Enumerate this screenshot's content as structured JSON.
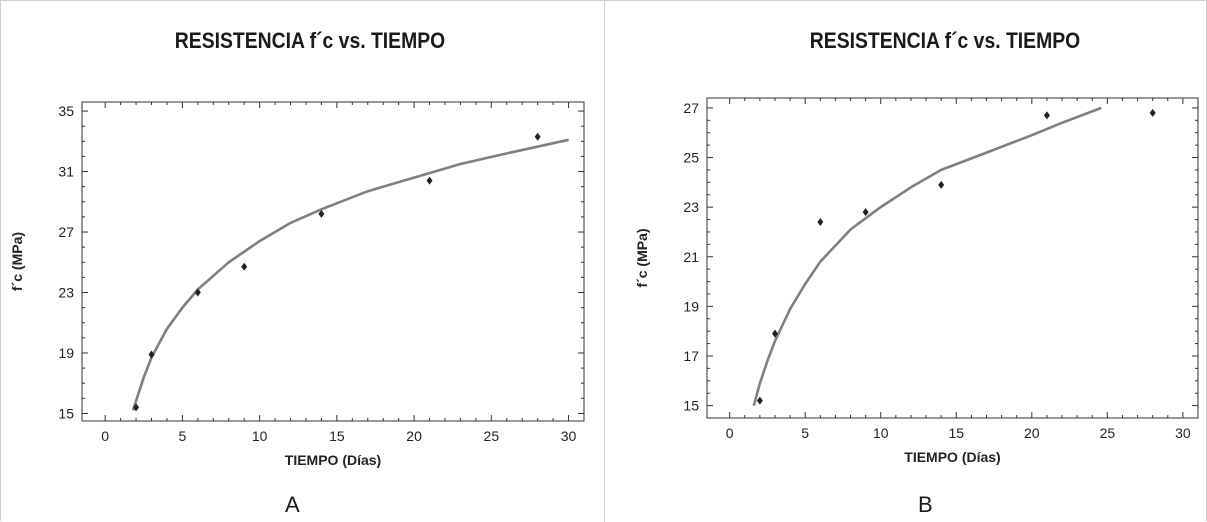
{
  "chart_data": [
    {
      "type": "scatter",
      "panel_label": "A",
      "title": "RESISTENCIA f´c vs. TIEMPO",
      "xlabel": "TIEMPO (Días)",
      "ylabel": "f´c (MPa)",
      "xlim": [
        -1.5,
        31
      ],
      "ylim": [
        14.5,
        35.6
      ],
      "xticks": [
        0,
        5,
        10,
        15,
        20,
        25,
        30
      ],
      "yticks": [
        15,
        19,
        23,
        27,
        31,
        35
      ],
      "grid": false,
      "series": [
        {
          "kind": "points",
          "marker": "diamond",
          "x": [
            2,
            3,
            6,
            9,
            14,
            21,
            28
          ],
          "y": [
            15.4,
            18.9,
            23.0,
            24.7,
            28.2,
            30.4,
            33.3
          ]
        },
        {
          "kind": "fit",
          "curve": "logarithmic",
          "x_range": [
            1.8,
            30
          ],
          "x": [
            1.8,
            2.5,
            3,
            4,
            5,
            6,
            8,
            10,
            12,
            14,
            17,
            20,
            23,
            26,
            30
          ],
          "y": [
            15.2,
            17.4,
            18.7,
            20.6,
            22.0,
            23.2,
            25.0,
            26.4,
            27.6,
            28.5,
            29.7,
            30.6,
            31.5,
            32.2,
            33.1
          ]
        }
      ]
    },
    {
      "type": "scatter",
      "panel_label": "B",
      "title": "RESISTENCIA f´c vs. TIEMPO",
      "xlabel": "TIEMPO (Días)",
      "ylabel": "f´c (MPa)",
      "xlim": [
        -1.5,
        31
      ],
      "ylim": [
        14.5,
        27.4
      ],
      "xticks": [
        0,
        5,
        10,
        15,
        20,
        25,
        30
      ],
      "yticks": [
        15,
        17,
        19,
        21,
        23,
        25,
        27
      ],
      "grid": false,
      "series": [
        {
          "kind": "points",
          "marker": "diamond",
          "x": [
            2,
            3,
            6,
            9,
            14,
            21,
            28
          ],
          "y": [
            15.2,
            17.9,
            22.4,
            22.8,
            23.9,
            26.7,
            26.8
          ]
        },
        {
          "kind": "fit",
          "curve": "logarithmic",
          "x_range": [
            1.6,
            24.6
          ],
          "x": [
            1.6,
            2,
            2.5,
            3,
            4,
            5,
            6,
            8,
            10,
            12,
            14,
            17,
            20,
            22,
            24.6
          ],
          "y": [
            15.0,
            15.9,
            16.8,
            17.6,
            18.9,
            19.9,
            20.8,
            22.1,
            23.0,
            23.8,
            24.5,
            25.2,
            25.9,
            26.4,
            27.0
          ]
        }
      ]
    }
  ]
}
